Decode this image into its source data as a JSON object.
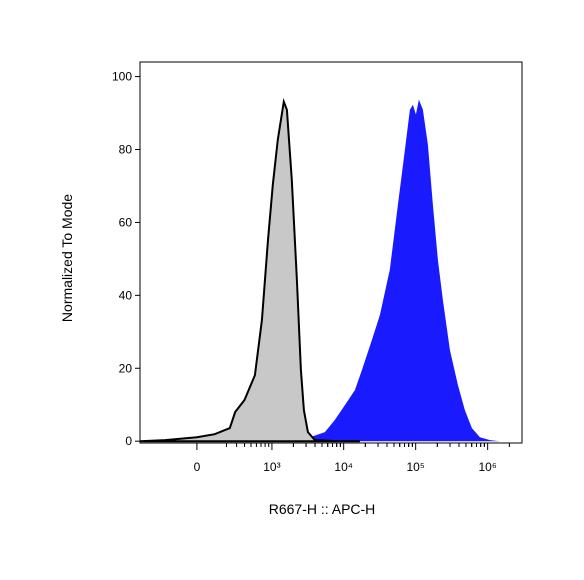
{
  "chart_data": {
    "type": "area",
    "x_label": "R667-H :: APC-H",
    "y_label": "Normalized To Mode",
    "xscale": "arcsinh",
    "xlim": [
      -550,
      3000000
    ],
    "xticks": [
      0,
      {
        "value": 1000,
        "label": "10³"
      },
      {
        "value": 10000,
        "label": "10⁴"
      },
      {
        "value": 100000,
        "label": "10⁵"
      },
      {
        "value": 1000000,
        "label": "10⁶"
      }
    ],
    "ylim": [
      -0.5,
      104
    ],
    "yticks": [
      0,
      20,
      40,
      60,
      80,
      100
    ],
    "series": [
      {
        "color": "#1a1aff",
        "outline": null,
        "x": [
          940,
          1790,
          3400,
          5480,
          7540,
          10390,
          14300,
          17900,
          24600,
          31900,
          43800,
          56600,
          70800,
          83100,
          91500,
          100700,
          110900,
          126000,
          147800,
          173500,
          203600,
          239000,
          299000,
          386000,
          483000,
          604000,
          780000,
          1074000,
          1479000
        ],
        "values": [
          0,
          0.3,
          1.1,
          2.5,
          5.8,
          9.9,
          14,
          19.5,
          27.7,
          34.6,
          47,
          64.8,
          79.9,
          90.9,
          92.3,
          89.6,
          93.7,
          90.9,
          81.3,
          64.8,
          49.7,
          38.7,
          25,
          15.4,
          8.5,
          3.6,
          1.1,
          0.3,
          0
        ]
      },
      {
        "color": "#c8c8c8",
        "outline": "#000000",
        "x": [
          -550,
          -220,
          0,
          110,
          230,
          285,
          400,
          570,
          720,
          880,
          1030,
          1210,
          1470,
          1620,
          1900,
          2240,
          2540,
          2800,
          3180,
          3980,
          8860,
          16800
        ],
        "values": [
          0,
          0.3,
          1.1,
          1.9,
          3.6,
          8,
          11.3,
          18.1,
          33.2,
          55.2,
          70.3,
          82.7,
          93.1,
          90.9,
          71.7,
          44.2,
          19.5,
          8.5,
          2.5,
          0.3,
          0,
          0
        ]
      }
    ]
  }
}
